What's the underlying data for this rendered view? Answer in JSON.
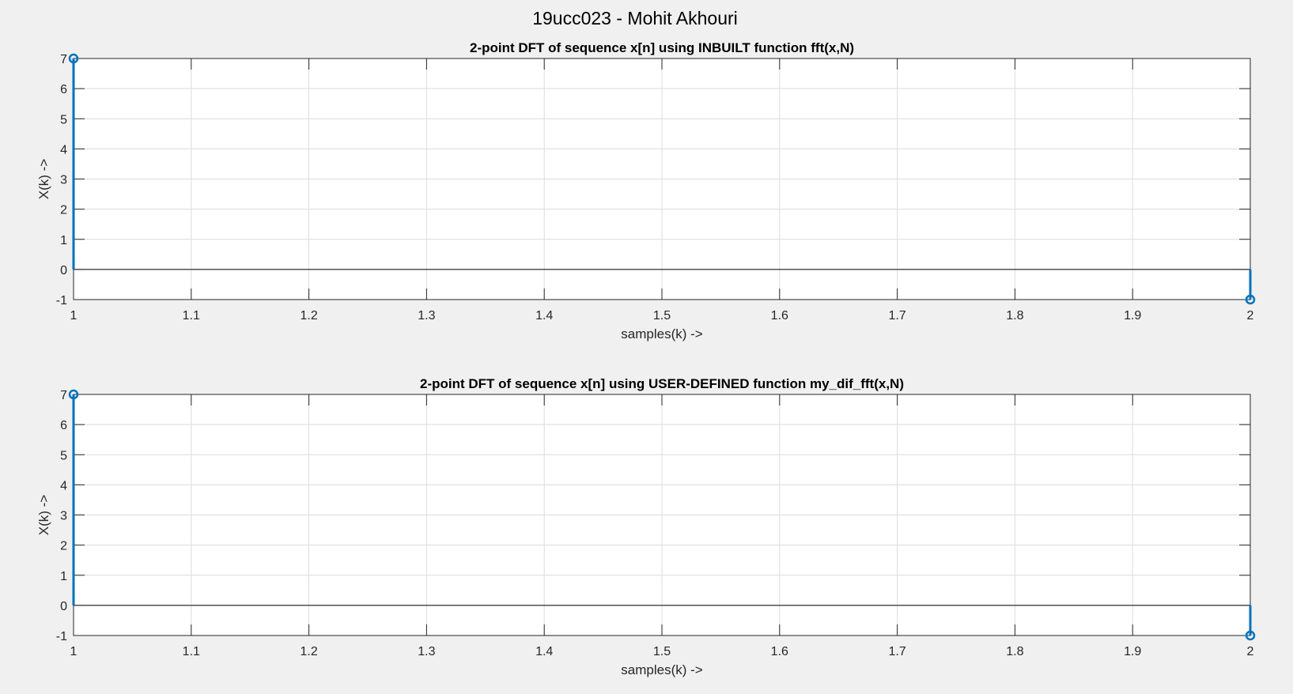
{
  "figure": {
    "title": "19ucc023 - Mohit Akhouri",
    "colors": {
      "background": "#f0f0f0",
      "axes_background": "#ffffff",
      "stem": "#0072bd",
      "grid": "#dcdcdc",
      "axis": "#262626",
      "text": "#262626"
    }
  },
  "chart_data": [
    {
      "type": "stem",
      "title": "2-point DFT of sequence x[n] using INBUILT function fft(x,N)",
      "xlabel": "samples(k) ->",
      "ylabel": "X(k) ->",
      "x": [
        1,
        2
      ],
      "y": [
        7,
        -1
      ],
      "xlim": [
        1,
        2
      ],
      "ylim": [
        -1,
        7
      ],
      "xticks": [
        "1",
        "1.1",
        "1.2",
        "1.3",
        "1.4",
        "1.5",
        "1.6",
        "1.7",
        "1.8",
        "1.9",
        "2"
      ],
      "yticks": [
        "-1",
        "0",
        "1",
        "2",
        "3",
        "4",
        "5",
        "6",
        "7"
      ],
      "grid": true,
      "baseline": 0
    },
    {
      "type": "stem",
      "title": "2-point DFT of sequence x[n] using USER-DEFINED function my_dif_fft(x,N)",
      "xlabel": "samples(k) ->",
      "ylabel": "X(k) ->",
      "x": [
        1,
        2
      ],
      "y": [
        7,
        -1
      ],
      "xlim": [
        1,
        2
      ],
      "ylim": [
        -1,
        7
      ],
      "xticks": [
        "1",
        "1.1",
        "1.2",
        "1.3",
        "1.4",
        "1.5",
        "1.6",
        "1.7",
        "1.8",
        "1.9",
        "2"
      ],
      "yticks": [
        "-1",
        "0",
        "1",
        "2",
        "3",
        "4",
        "5",
        "6",
        "7"
      ],
      "grid": true,
      "baseline": 0
    }
  ]
}
